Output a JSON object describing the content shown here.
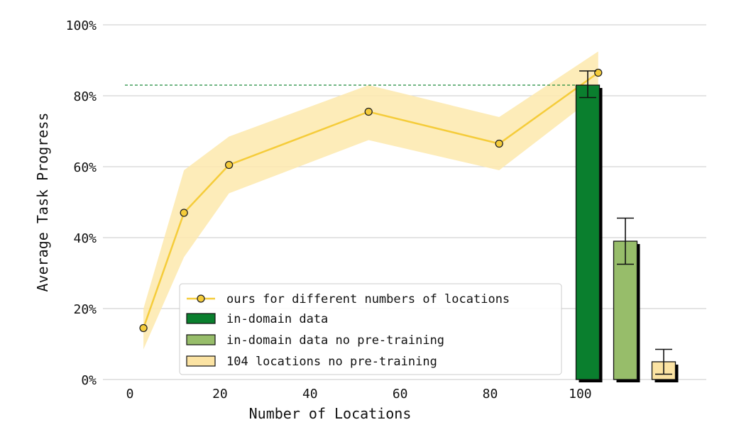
{
  "chart_data": {
    "type": "line",
    "title": "",
    "xlabel": "Number of Locations",
    "ylabel": "Average Task Progress",
    "xlim": [
      -6,
      128
    ],
    "ylim": [
      0,
      100
    ],
    "x_ticks": [
      0,
      20,
      40,
      60,
      80,
      100
    ],
    "x_tick_labels": [
      "0",
      "20",
      "40",
      "60",
      "80",
      "100"
    ],
    "y_ticks": [
      0,
      20,
      40,
      60,
      80,
      100
    ],
    "y_tick_labels": [
      "0%",
      "20%",
      "40%",
      "60%",
      "80%",
      "100%"
    ],
    "grid": "horizontal",
    "legend_position": "lower-center",
    "series": [
      {
        "name": "ours for different numbers of locations",
        "kind": "line-with-band",
        "color": "#f5cc3a",
        "band_color": "#fde9ad",
        "x": [
          3,
          12,
          22,
          53,
          82,
          104
        ],
        "y": [
          14.5,
          47,
          60.5,
          75.5,
          66.5,
          86.5
        ],
        "lower": [
          8.5,
          34.5,
          52.5,
          67.5,
          59,
          80.5
        ],
        "upper": [
          20,
          59,
          68.5,
          83,
          74,
          92.5
        ]
      }
    ],
    "bars": [
      {
        "name": "in-domain data",
        "value": 83,
        "error_low": 79.5,
        "error_high": 87,
        "color": "#0a7f2e"
      },
      {
        "name": "in-domain data no pre-training",
        "value": 39,
        "error_low": 32.5,
        "error_high": 45.5,
        "color": "#97bd6a"
      },
      {
        "name": "104 locations no pre-training",
        "value": 5,
        "error_low": 1.5,
        "error_high": 8.5,
        "color": "#fbe3a3"
      }
    ],
    "reference_line": {
      "y": 83,
      "color": "#1e8a3c"
    }
  }
}
